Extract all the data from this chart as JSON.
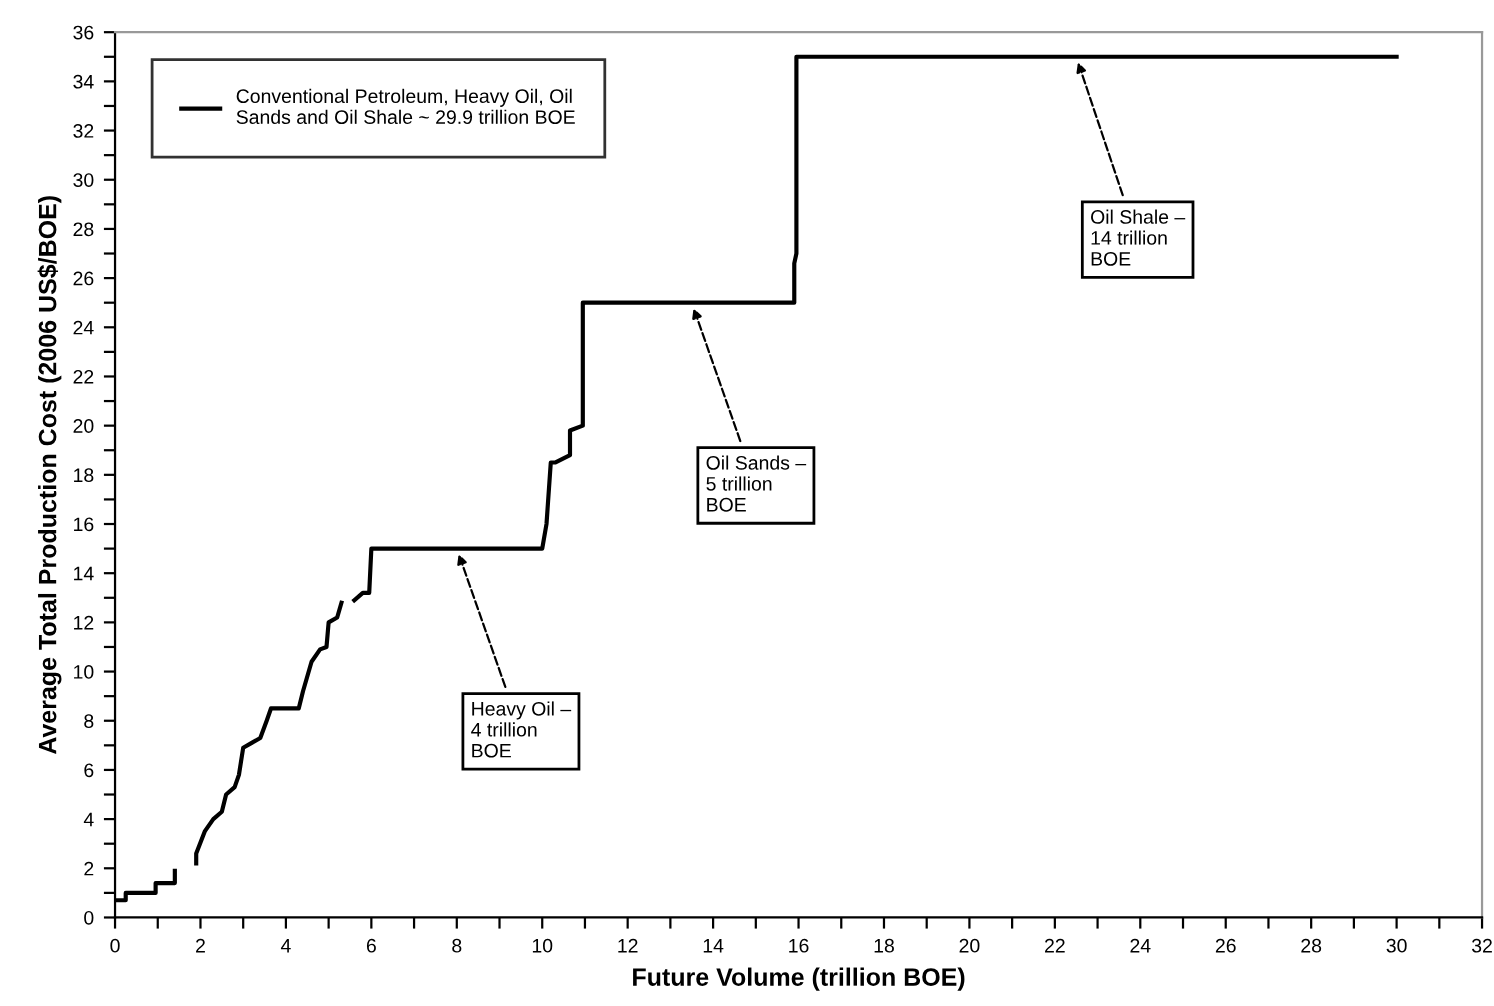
{
  "chart_data": {
    "type": "line",
    "xlabel": "Future Volume (trillion BOE)",
    "ylabel": "Average Total Production Cost (2006 US$/BOE)",
    "series": [
      {
        "name": "Conventional Petroleum, Heavy Oil, Oil\nSands and Oil Shale ~ 29.9 trillion BOE",
        "color": "#000000",
        "x": [
          0,
          0.25,
          0.25,
          0.95,
          0.95,
          1.4,
          1.4,
          1.6,
          1.9,
          1.9,
          2.1,
          2.3,
          2.5,
          2.6,
          2.8,
          2.9,
          3.0,
          3.2,
          3.4,
          3.55,
          3.65,
          4.3,
          4.4,
          4.6,
          4.8,
          4.95,
          5.0,
          5.2,
          5.3,
          5.45,
          5.6,
          5.8,
          5.95,
          6.0,
          10.0,
          10.1,
          10.2,
          10.3,
          10.65,
          10.65,
          10.95,
          10.95,
          15.9,
          15.9,
          15.95,
          15.95,
          30.0
        ],
        "values": [
          0.7,
          0.7,
          1.0,
          1.0,
          1.4,
          1.4,
          1.9,
          null,
          2.2,
          2.6,
          3.5,
          4.0,
          4.3,
          5.0,
          5.3,
          5.8,
          6.9,
          7.1,
          7.3,
          8.0,
          8.5,
          8.5,
          9.2,
          10.4,
          10.9,
          11.0,
          12.0,
          12.2,
          12.8,
          null,
          12.9,
          13.2,
          13.2,
          15.0,
          15.0,
          16.0,
          18.5,
          18.5,
          18.8,
          19.8,
          20.0,
          25.0,
          25.0,
          26.6,
          27.0,
          35.0,
          35.0
        ]
      }
    ],
    "xlim": [
      0,
      32
    ],
    "ylim": [
      0,
      36
    ],
    "xticks": [
      0,
      {
        "value": 1,
        "label": null
      },
      2,
      {
        "value": 3,
        "label": null
      },
      4,
      {
        "value": 5,
        "label": null
      },
      6,
      {
        "value": 7,
        "label": null
      },
      8,
      {
        "value": 9,
        "label": null
      },
      10,
      {
        "value": 11,
        "label": null
      },
      12,
      {
        "value": 13,
        "label": null
      },
      14,
      {
        "value": 15,
        "label": null
      },
      16,
      {
        "value": 17,
        "label": null
      },
      18,
      {
        "value": 19,
        "label": null
      },
      20,
      {
        "value": 21,
        "label": null
      },
      22,
      {
        "value": 23,
        "label": null
      },
      24,
      {
        "value": 25,
        "label": null
      },
      26,
      {
        "value": 27,
        "label": null
      },
      28,
      {
        "value": 29,
        "label": null
      },
      30,
      {
        "value": 31,
        "label": null
      },
      32
    ],
    "yticks": [
      0,
      {
        "value": 1,
        "label": null
      },
      2,
      {
        "value": 3,
        "label": null
      },
      4,
      {
        "value": 5,
        "label": null
      },
      6,
      {
        "value": 7,
        "label": null
      },
      8,
      {
        "value": 9,
        "label": null
      },
      10,
      {
        "value": 11,
        "label": null
      },
      12,
      {
        "value": 13,
        "label": null
      },
      14,
      {
        "value": 15,
        "label": null
      },
      16,
      {
        "value": 17,
        "label": null
      },
      18,
      {
        "value": 19,
        "label": null
      },
      20,
      {
        "value": 21,
        "label": null
      },
      22,
      {
        "value": 23,
        "label": null
      },
      24,
      {
        "value": 25,
        "label": null
      },
      26,
      {
        "value": 27,
        "label": null
      },
      28,
      {
        "value": 29,
        "label": null
      },
      30,
      {
        "value": 31,
        "label": null
      },
      32,
      {
        "value": 33,
        "label": null
      },
      34,
      {
        "value": 35,
        "label": null
      },
      36
    ],
    "annotations": [
      {
        "text": "Heavy Oil –\n4 trillion\nBOE",
        "x": 8,
        "y": 15.0
      },
      {
        "text": "Oil Sands –\n5 trillion\nBOE",
        "x": 13.5,
        "y": 25.0
      },
      {
        "text": "Oil Shale –\n14 trillion\nBOE",
        "x": 22.5,
        "y": 35.0
      }
    ],
    "legend": "top left",
    "grid": false,
    "marker": "none",
    "line_style": "solid"
  }
}
